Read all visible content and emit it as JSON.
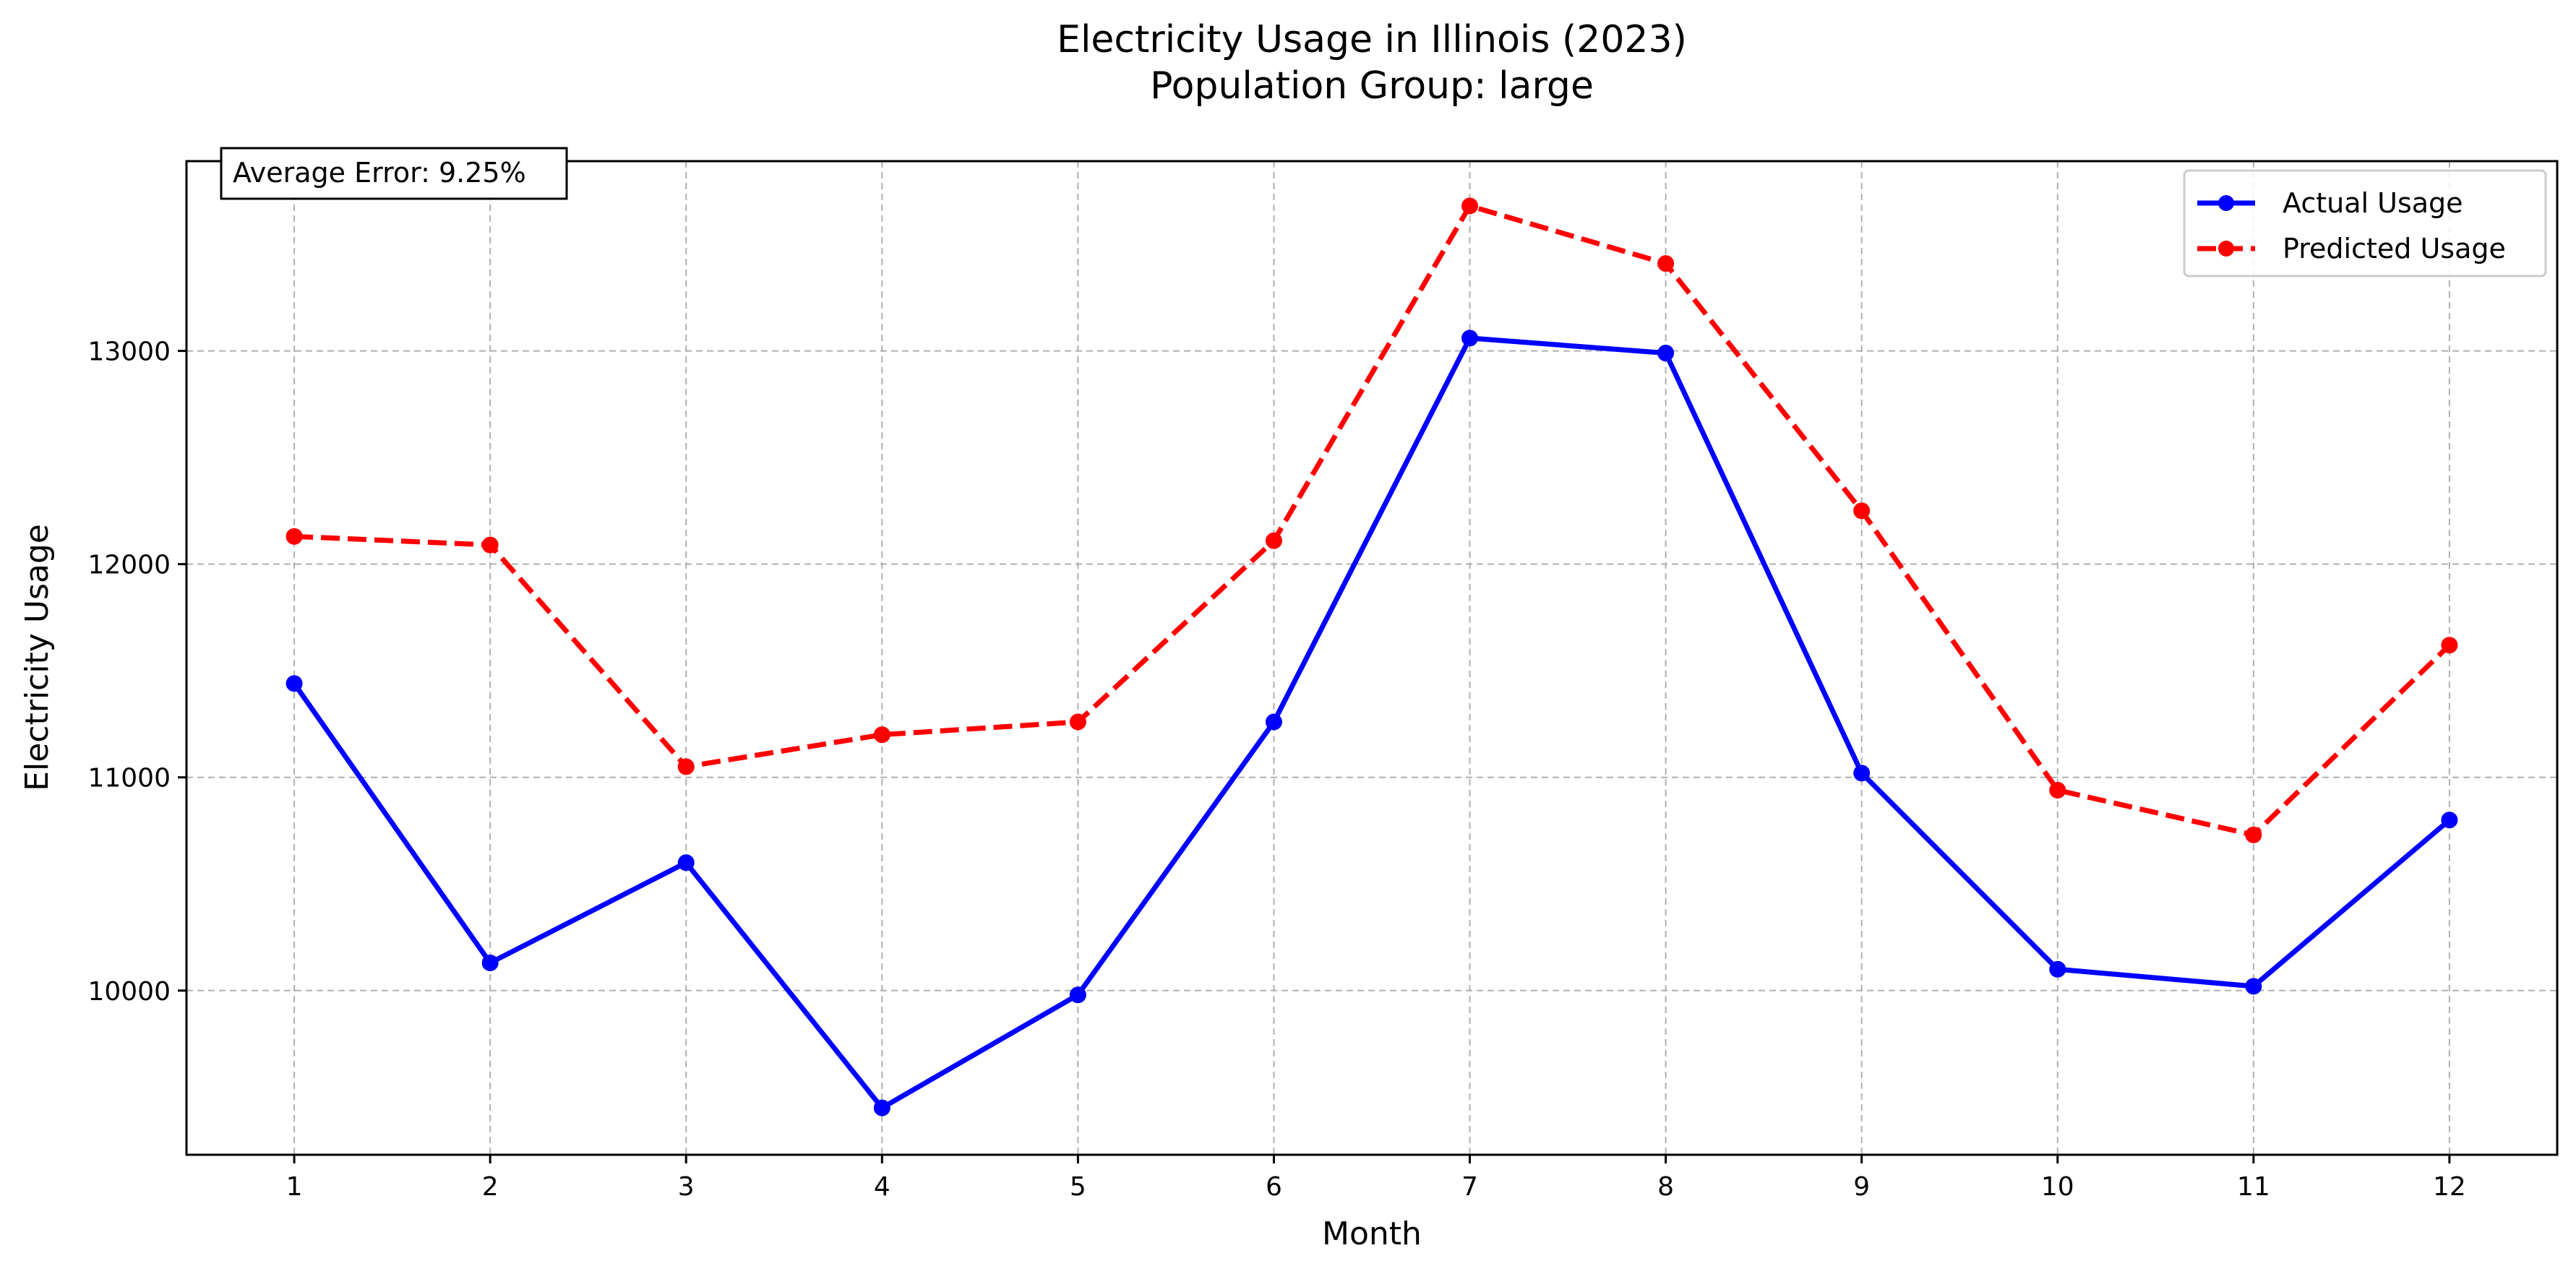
{
  "chart_data": {
    "type": "line",
    "title": "Electricity Usage in Illinois (2023)",
    "subtitle": "Population Group: large",
    "xlabel": "Month",
    "ylabel": "Electricity Usage",
    "x": [
      1,
      2,
      3,
      4,
      5,
      6,
      7,
      8,
      9,
      10,
      11,
      12
    ],
    "xlim": [
      0.45,
      12.55
    ],
    "ylim": [
      9230,
      13890
    ],
    "yticks": [
      10000,
      11000,
      12000,
      13000
    ],
    "grid": true,
    "legend_position": "top-right",
    "annotation": "Average Error: 9.25%",
    "series": [
      {
        "name": "Actual Usage",
        "color": "#0000ff",
        "line_style": "solid",
        "marker": "circle",
        "values": [
          11440,
          10130,
          10600,
          9450,
          9980,
          11260,
          13060,
          12990,
          11020,
          10100,
          10020,
          10800
        ]
      },
      {
        "name": "Predicted Usage",
        "color": "#ff0000",
        "line_style": "dashed",
        "marker": "circle",
        "values": [
          12130,
          12090,
          11050,
          11200,
          11260,
          12110,
          13680,
          13410,
          12250,
          10940,
          10730,
          11620
        ]
      }
    ]
  }
}
